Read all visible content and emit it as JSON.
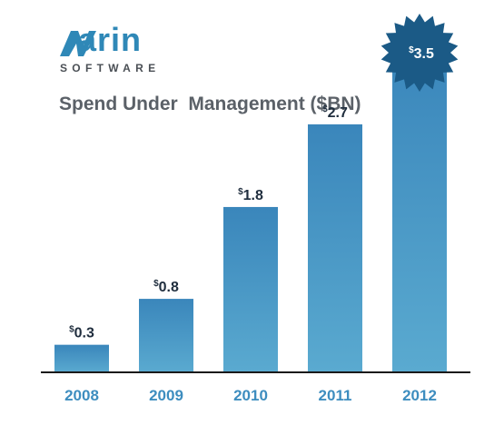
{
  "logo": {
    "word": "arin",
    "subtitle": "SOFTWARE"
  },
  "chart_data": {
    "type": "bar",
    "title": "Spend Under  Management ($BN)",
    "categories": [
      "2008",
      "2009",
      "2010",
      "2011",
      "2012"
    ],
    "values": [
      0.3,
      0.8,
      1.8,
      2.7,
      3.5
    ],
    "data_labels": [
      "0.3",
      "0.8",
      "1.8",
      "2.7",
      "3.5"
    ],
    "currency_symbol": "$",
    "ylim": [
      0,
      3.5
    ],
    "grid": false,
    "colors": {
      "bar": "#3f8cc0",
      "bar_light": "#5aaad0",
      "highlight_burst": "#1b5a86",
      "axis": "#1a1a1a",
      "tick_label": "#3d8dbf",
      "logo": "#2f88b7"
    }
  }
}
